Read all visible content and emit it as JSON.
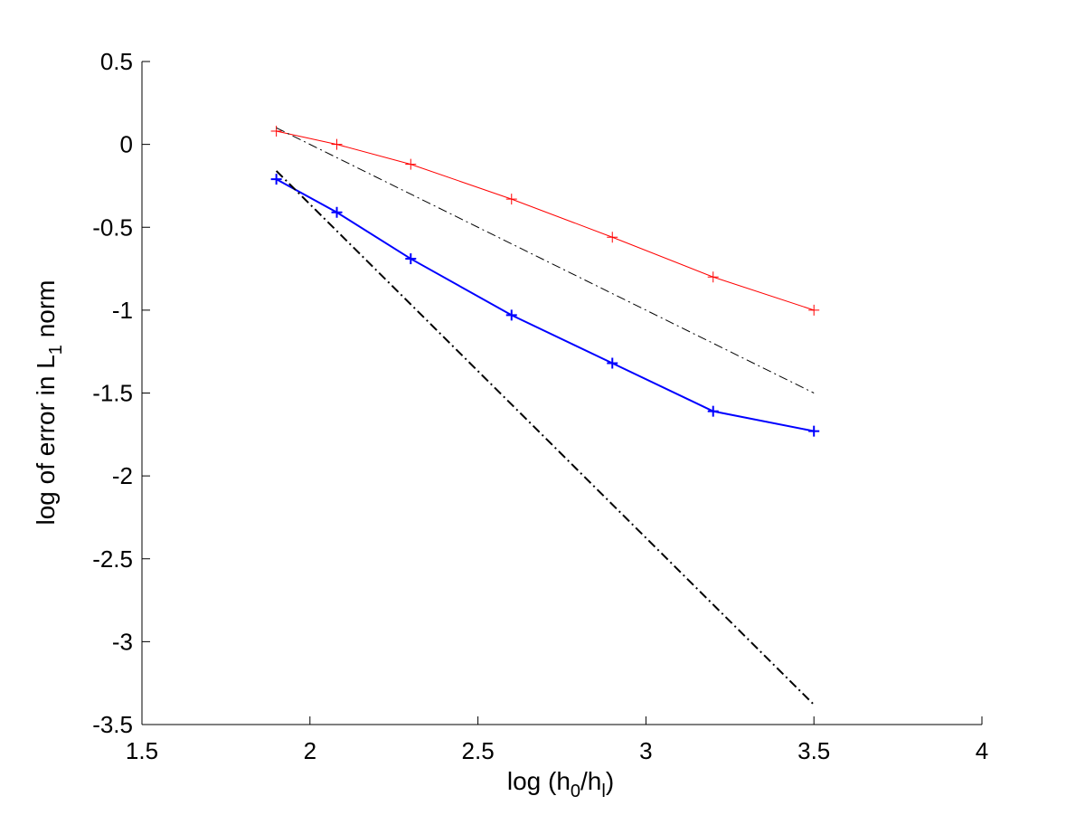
{
  "chart_data": {
    "type": "line",
    "xlabel": {
      "prefix": "log (h",
      "sub1": "0",
      "mid": "/h",
      "sub2": "l",
      "suffix": ")"
    },
    "ylabel": {
      "prefix": "log of error in L",
      "sub": "1",
      "suffix": " norm"
    },
    "xlim": [
      1.5,
      4
    ],
    "ylim": [
      -3.5,
      0.5
    ],
    "xticks": [
      1.5,
      2,
      2.5,
      3,
      3.5,
      4
    ],
    "yticks": [
      0.5,
      0,
      -0.5,
      -1,
      -1.5,
      -2,
      -2.5,
      -3,
      -3.5
    ],
    "xtick_labels": [
      "1.5",
      "2",
      "2.5",
      "3",
      "3.5",
      "4"
    ],
    "ytick_labels": [
      "0.5",
      "0",
      "-0.5",
      "-1",
      "-1.5",
      "-2",
      "-2.5",
      "-3",
      "-3.5"
    ],
    "grid": false,
    "series": [
      {
        "color": "#ff0000",
        "style": "solid",
        "marker": "+",
        "linewidth": 1,
        "x": [
          1.9,
          2.08,
          2.3,
          2.6,
          2.9,
          3.2,
          3.5
        ],
        "y": [
          0.08,
          0.0,
          -0.12,
          -0.33,
          -0.56,
          -0.8,
          -1.0
        ]
      },
      {
        "color": "#0000ff",
        "style": "solid",
        "marker": "+",
        "linewidth": 2,
        "x": [
          1.9,
          2.08,
          2.3,
          2.6,
          2.9,
          3.2,
          3.5
        ],
        "y": [
          -0.21,
          -0.41,
          -0.69,
          -1.03,
          -1.32,
          -1.61,
          -1.73
        ]
      },
      {
        "color": "#000000",
        "style": "dashdot",
        "marker": "none",
        "linewidth": 1,
        "x": [
          1.9,
          3.5
        ],
        "y": [
          0.1,
          -1.5
        ]
      },
      {
        "color": "#000000",
        "style": "dashdot",
        "marker": "none",
        "linewidth": 2,
        "x": [
          1.9,
          3.5
        ],
        "y": [
          -0.16,
          -3.38
        ]
      }
    ]
  }
}
